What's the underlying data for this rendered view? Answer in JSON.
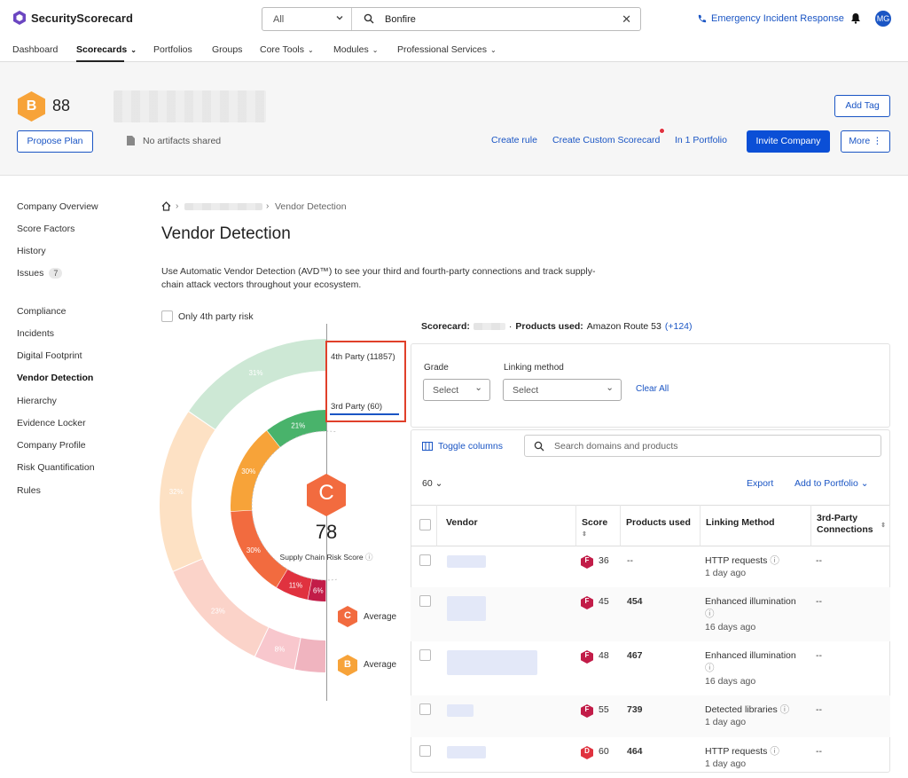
{
  "topbar": {
    "brand": "SecurityScorecard",
    "search_scope": "All",
    "search_query": "Bonfire",
    "emergency_link": "Emergency Incident Response",
    "avatar_initials": "MG"
  },
  "nav": {
    "items": [
      "Dashboard",
      "Scorecards",
      "Portfolios",
      "Groups",
      "Core Tools",
      "Modules",
      "Professional Services"
    ]
  },
  "header": {
    "grade": "B",
    "score": "88",
    "propose_plan": "Propose Plan",
    "artifacts": "No artifacts shared",
    "create_rule": "Create rule",
    "create_custom": "Create Custom Scorecard",
    "in_portfolio": "In 1 Portfolio",
    "invite": "Invite Company",
    "more": "More",
    "add_tag": "Add Tag"
  },
  "sidebar": {
    "group1": [
      "Company Overview",
      "Score Factors",
      "History",
      "Issues"
    ],
    "issues_count": "7",
    "group2": [
      "Compliance",
      "Incidents",
      "Digital Footprint",
      "Vendor Detection",
      "Hierarchy",
      "Evidence Locker",
      "Company Profile",
      "Risk Quantification",
      "Rules"
    ]
  },
  "main": {
    "breadcrumb_current": "Vendor Detection",
    "title": "Vendor Detection",
    "description_line1": "Use Automatic Vendor Detection (AVD™) to see your third and fourth-party connections and track supply-",
    "description_line2": "chain attack vectors throughout your ecosystem.",
    "only_4th_party": "Only 4th party risk"
  },
  "donut": {
    "fourth_party_tab": "4th Party (11857)",
    "third_party_tab": "3rd Party (60)",
    "center_grade": "C",
    "center_score": "78",
    "center_label": "Supply Chain Risk Score",
    "outer_ring": [
      {
        "pct": 31,
        "label": "31%",
        "color": "#cde8d5"
      },
      {
        "pct": 32,
        "label": "32%",
        "color": "#fde1c4"
      },
      {
        "pct": 23,
        "label": "23%",
        "color": "#fbd3c9"
      },
      {
        "pct": 8,
        "label": "8%",
        "color": "#f8c7cd"
      },
      {
        "pct": 6,
        "label": "",
        "color": "#f0b4bf"
      }
    ],
    "inner_ring": [
      {
        "pct": 21,
        "label": "21%",
        "color": "#49b36b"
      },
      {
        "pct": 30,
        "label": "30%",
        "color": "#f7a339"
      },
      {
        "pct": 30,
        "label": "30%",
        "color": "#f26b3f"
      },
      {
        "pct": 11,
        "label": "11%",
        "color": "#e0323f"
      },
      {
        "pct": 6,
        "label": "6%",
        "color": "#c21c48"
      }
    ],
    "avg1_grade": "C",
    "avg2_grade": "B",
    "average_label": "Average"
  },
  "scorecard_line": {
    "scorecard_label": "Scorecard:",
    "products_label": "Products used:",
    "product": "Amazon Route 53",
    "more": "(+124)"
  },
  "filters": {
    "grade_label": "Grade",
    "grade_value": "Select",
    "linking_label": "Linking method",
    "linking_value": "Select",
    "clear_all": "Clear All"
  },
  "toolbar": {
    "toggle_columns": "Toggle columns",
    "search_placeholder": "Search domains and products",
    "page_size": "60",
    "export": "Export",
    "add_to_portfolio": "Add to Portfolio"
  },
  "table": {
    "headers": [
      "Vendor",
      "Score",
      "Products used",
      "Linking Method",
      "3rd-Party Connections"
    ],
    "rows": [
      {
        "grade": "F",
        "score": "36",
        "products": "--",
        "method": "HTTP requests",
        "time": "1 day ago",
        "conn": "--"
      },
      {
        "grade": "F",
        "score": "45",
        "products": "454",
        "method": "Enhanced illumination",
        "time": "16 days ago",
        "conn": "--"
      },
      {
        "grade": "F",
        "score": "48",
        "products": "467",
        "method": "Enhanced illumination",
        "time": "16 days ago",
        "conn": "--"
      },
      {
        "grade": "F",
        "score": "55",
        "products": "739",
        "method": "Detected libraries",
        "time": "1 day ago",
        "conn": "--"
      },
      {
        "grade": "D",
        "score": "60",
        "products": "464",
        "method": "HTTP requests",
        "time": "1 day ago",
        "conn": "--"
      }
    ]
  }
}
